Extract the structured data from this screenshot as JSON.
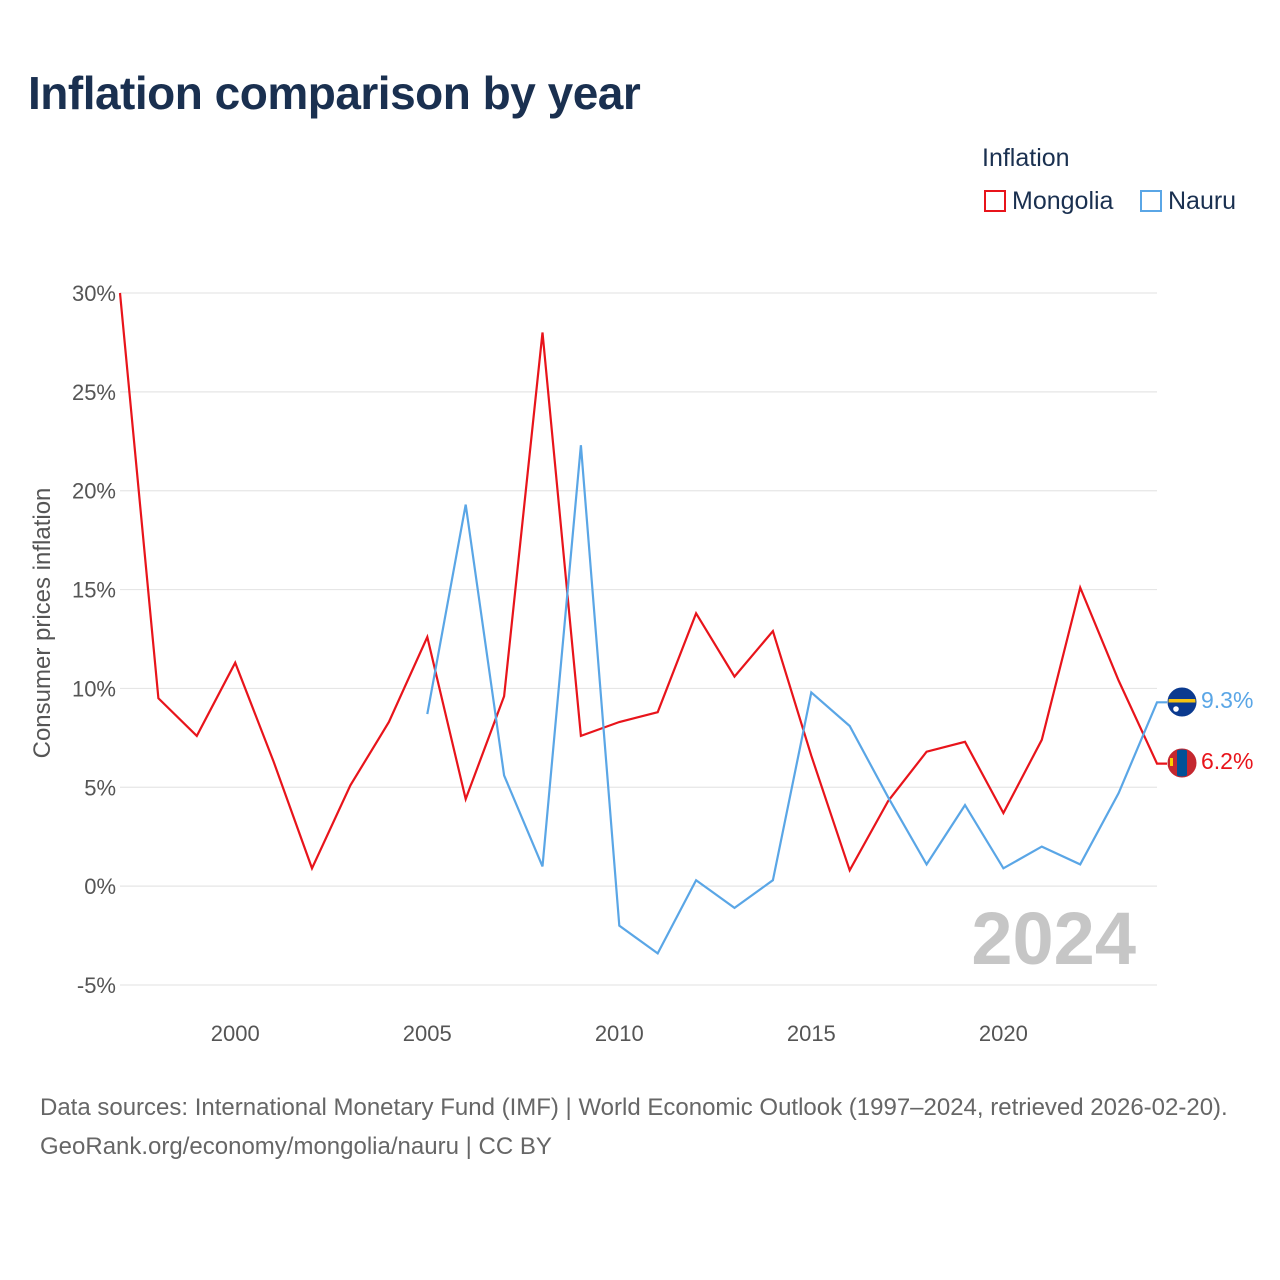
{
  "title": "Inflation comparison by year",
  "legend": {
    "title": "Inflation",
    "items": [
      {
        "label": "Mongolia",
        "color": "#e8141b"
      },
      {
        "label": "Nauru",
        "color": "#5aa6e6"
      }
    ]
  },
  "chart_data": {
    "type": "line",
    "title": "Inflation comparison by year",
    "xlabel": "",
    "ylabel": "Consumer prices inflation",
    "xlim": [
      1997,
      2024
    ],
    "ylim": [
      -5,
      30
    ],
    "x_ticks": [
      2000,
      2005,
      2010,
      2015,
      2020
    ],
    "y_ticks": [
      -5,
      0,
      5,
      10,
      15,
      20,
      25,
      30
    ],
    "y_tick_labels": [
      "-5%",
      "0%",
      "5%",
      "10%",
      "15%",
      "20%",
      "25%",
      "30%"
    ],
    "grid": true,
    "legend_position": "top-right",
    "watermark_year": "2024",
    "series": [
      {
        "name": "Mongolia",
        "color": "#e8141b",
        "end_label": "6.2%",
        "x": [
          1997,
          1998,
          1999,
          2000,
          2001,
          2002,
          2003,
          2004,
          2005,
          2006,
          2007,
          2008,
          2009,
          2010,
          2011,
          2012,
          2013,
          2014,
          2015,
          2016,
          2017,
          2018,
          2019,
          2020,
          2021,
          2022,
          2023,
          2024
        ],
        "values": [
          30.0,
          9.5,
          7.6,
          11.3,
          6.3,
          0.9,
          5.1,
          8.3,
          12.6,
          4.4,
          9.6,
          28.0,
          7.6,
          8.3,
          8.8,
          13.8,
          10.6,
          12.9,
          6.6,
          0.8,
          4.3,
          6.8,
          7.3,
          3.7,
          7.4,
          15.1,
          10.4,
          6.2
        ]
      },
      {
        "name": "Nauru",
        "color": "#5aa6e6",
        "end_label": "9.3%",
        "x": [
          2005,
          2006,
          2007,
          2008,
          2009,
          2010,
          2011,
          2012,
          2013,
          2014,
          2015,
          2016,
          2017,
          2018,
          2019,
          2020,
          2021,
          2022,
          2023,
          2024
        ],
        "values": [
          8.7,
          19.3,
          5.6,
          1.0,
          22.3,
          -2.0,
          -3.4,
          0.3,
          -1.1,
          0.3,
          9.8,
          8.1,
          4.5,
          1.1,
          4.1,
          0.9,
          2.0,
          1.1,
          4.7,
          9.3
        ]
      }
    ]
  },
  "source": {
    "line1": "Data sources: International Monetary Fund (IMF) | World Economic Outlook (1997–2024, retrieved 2026-02-20).",
    "line2": "GeoRank.org/economy/mongolia/nauru | CC BY"
  }
}
